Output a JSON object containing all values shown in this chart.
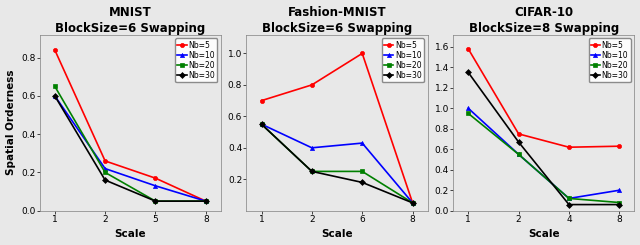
{
  "panels": [
    {
      "title": "MNIST",
      "subtitle": "BlockSize=6 Swapping",
      "xlabel": "Scale",
      "x_labels": [
        "1",
        "2",
        "5",
        "8"
      ],
      "series": [
        {
          "label": "Nb=5",
          "color": "red",
          "marker": "o",
          "values": [
            0.84,
            0.26,
            0.17,
            0.05
          ]
        },
        {
          "label": "Nb=10",
          "color": "blue",
          "marker": "^",
          "values": [
            0.6,
            0.22,
            0.13,
            0.05
          ]
        },
        {
          "label": "Nb=20",
          "color": "green",
          "marker": "s",
          "values": [
            0.65,
            0.2,
            0.05,
            0.05
          ]
        },
        {
          "label": "Nb=30",
          "color": "black",
          "marker": "D",
          "values": [
            0.6,
            0.16,
            0.05,
            0.05
          ]
        }
      ],
      "ylim": [
        0.0,
        0.92
      ],
      "yticks": [
        0.0,
        0.2,
        0.4,
        0.6,
        0.8
      ],
      "ytick_labels": [
        "0.0",
        "0.2",
        "0.4",
        "0.6",
        "0.8"
      ]
    },
    {
      "title": "Fashion-MNIST",
      "subtitle": "BlockSize=6 Swapping",
      "xlabel": "Scale",
      "x_labels": [
        "1",
        "2",
        "6",
        "8"
      ],
      "series": [
        {
          "label": "Nb=5",
          "color": "red",
          "marker": "o",
          "values": [
            0.7,
            0.8,
            1.0,
            0.05
          ]
        },
        {
          "label": "Nb=10",
          "color": "blue",
          "marker": "^",
          "values": [
            0.55,
            0.4,
            0.43,
            0.05
          ]
        },
        {
          "label": "Nb=20",
          "color": "green",
          "marker": "s",
          "values": [
            0.55,
            0.25,
            0.25,
            0.05
          ]
        },
        {
          "label": "Nb=30",
          "color": "black",
          "marker": "D",
          "values": [
            0.55,
            0.25,
            0.18,
            0.05
          ]
        }
      ],
      "ylim": [
        0.0,
        1.12
      ],
      "yticks": [
        0.2,
        0.4,
        0.6,
        0.8,
        1.0
      ],
      "ytick_labels": [
        "0.2",
        "0.4",
        "0.6",
        "0.8",
        "1.0"
      ]
    },
    {
      "title": "CIFAR-10",
      "subtitle": "BlockSize=8 Swapping",
      "xlabel": "Scale",
      "x_labels": [
        "1",
        "2",
        "4",
        "8"
      ],
      "series": [
        {
          "label": "Nb=5",
          "color": "red",
          "marker": "o",
          "values": [
            1.58,
            0.75,
            0.62,
            0.63
          ]
        },
        {
          "label": "Nb=10",
          "color": "blue",
          "marker": "^",
          "values": [
            1.0,
            0.55,
            0.12,
            0.2
          ]
        },
        {
          "label": "Nb=20",
          "color": "green",
          "marker": "s",
          "values": [
            0.95,
            0.55,
            0.12,
            0.08
          ]
        },
        {
          "label": "Nb=30",
          "color": "black",
          "marker": "D",
          "values": [
            1.35,
            0.67,
            0.06,
            0.06
          ]
        }
      ],
      "ylim": [
        0.0,
        1.72
      ],
      "yticks": [
        0.0,
        0.2,
        0.4,
        0.6,
        0.8,
        1.0,
        1.2,
        1.4,
        1.6
      ],
      "ytick_labels": [
        "0.0",
        "0.2",
        "0.4",
        "0.6",
        "0.8",
        "1.0",
        "1.2",
        "1.4",
        "1.6"
      ]
    }
  ],
  "ylabel": "Spatial Orderness",
  "bg_color": "#e8e8e8",
  "linewidth": 1.2,
  "markersize": 3,
  "title_fontsize": 8.5,
  "subtitle_fontsize": 7.5,
  "label_fontsize": 7.5,
  "tick_fontsize": 6.5,
  "legend_fontsize": 5.5
}
